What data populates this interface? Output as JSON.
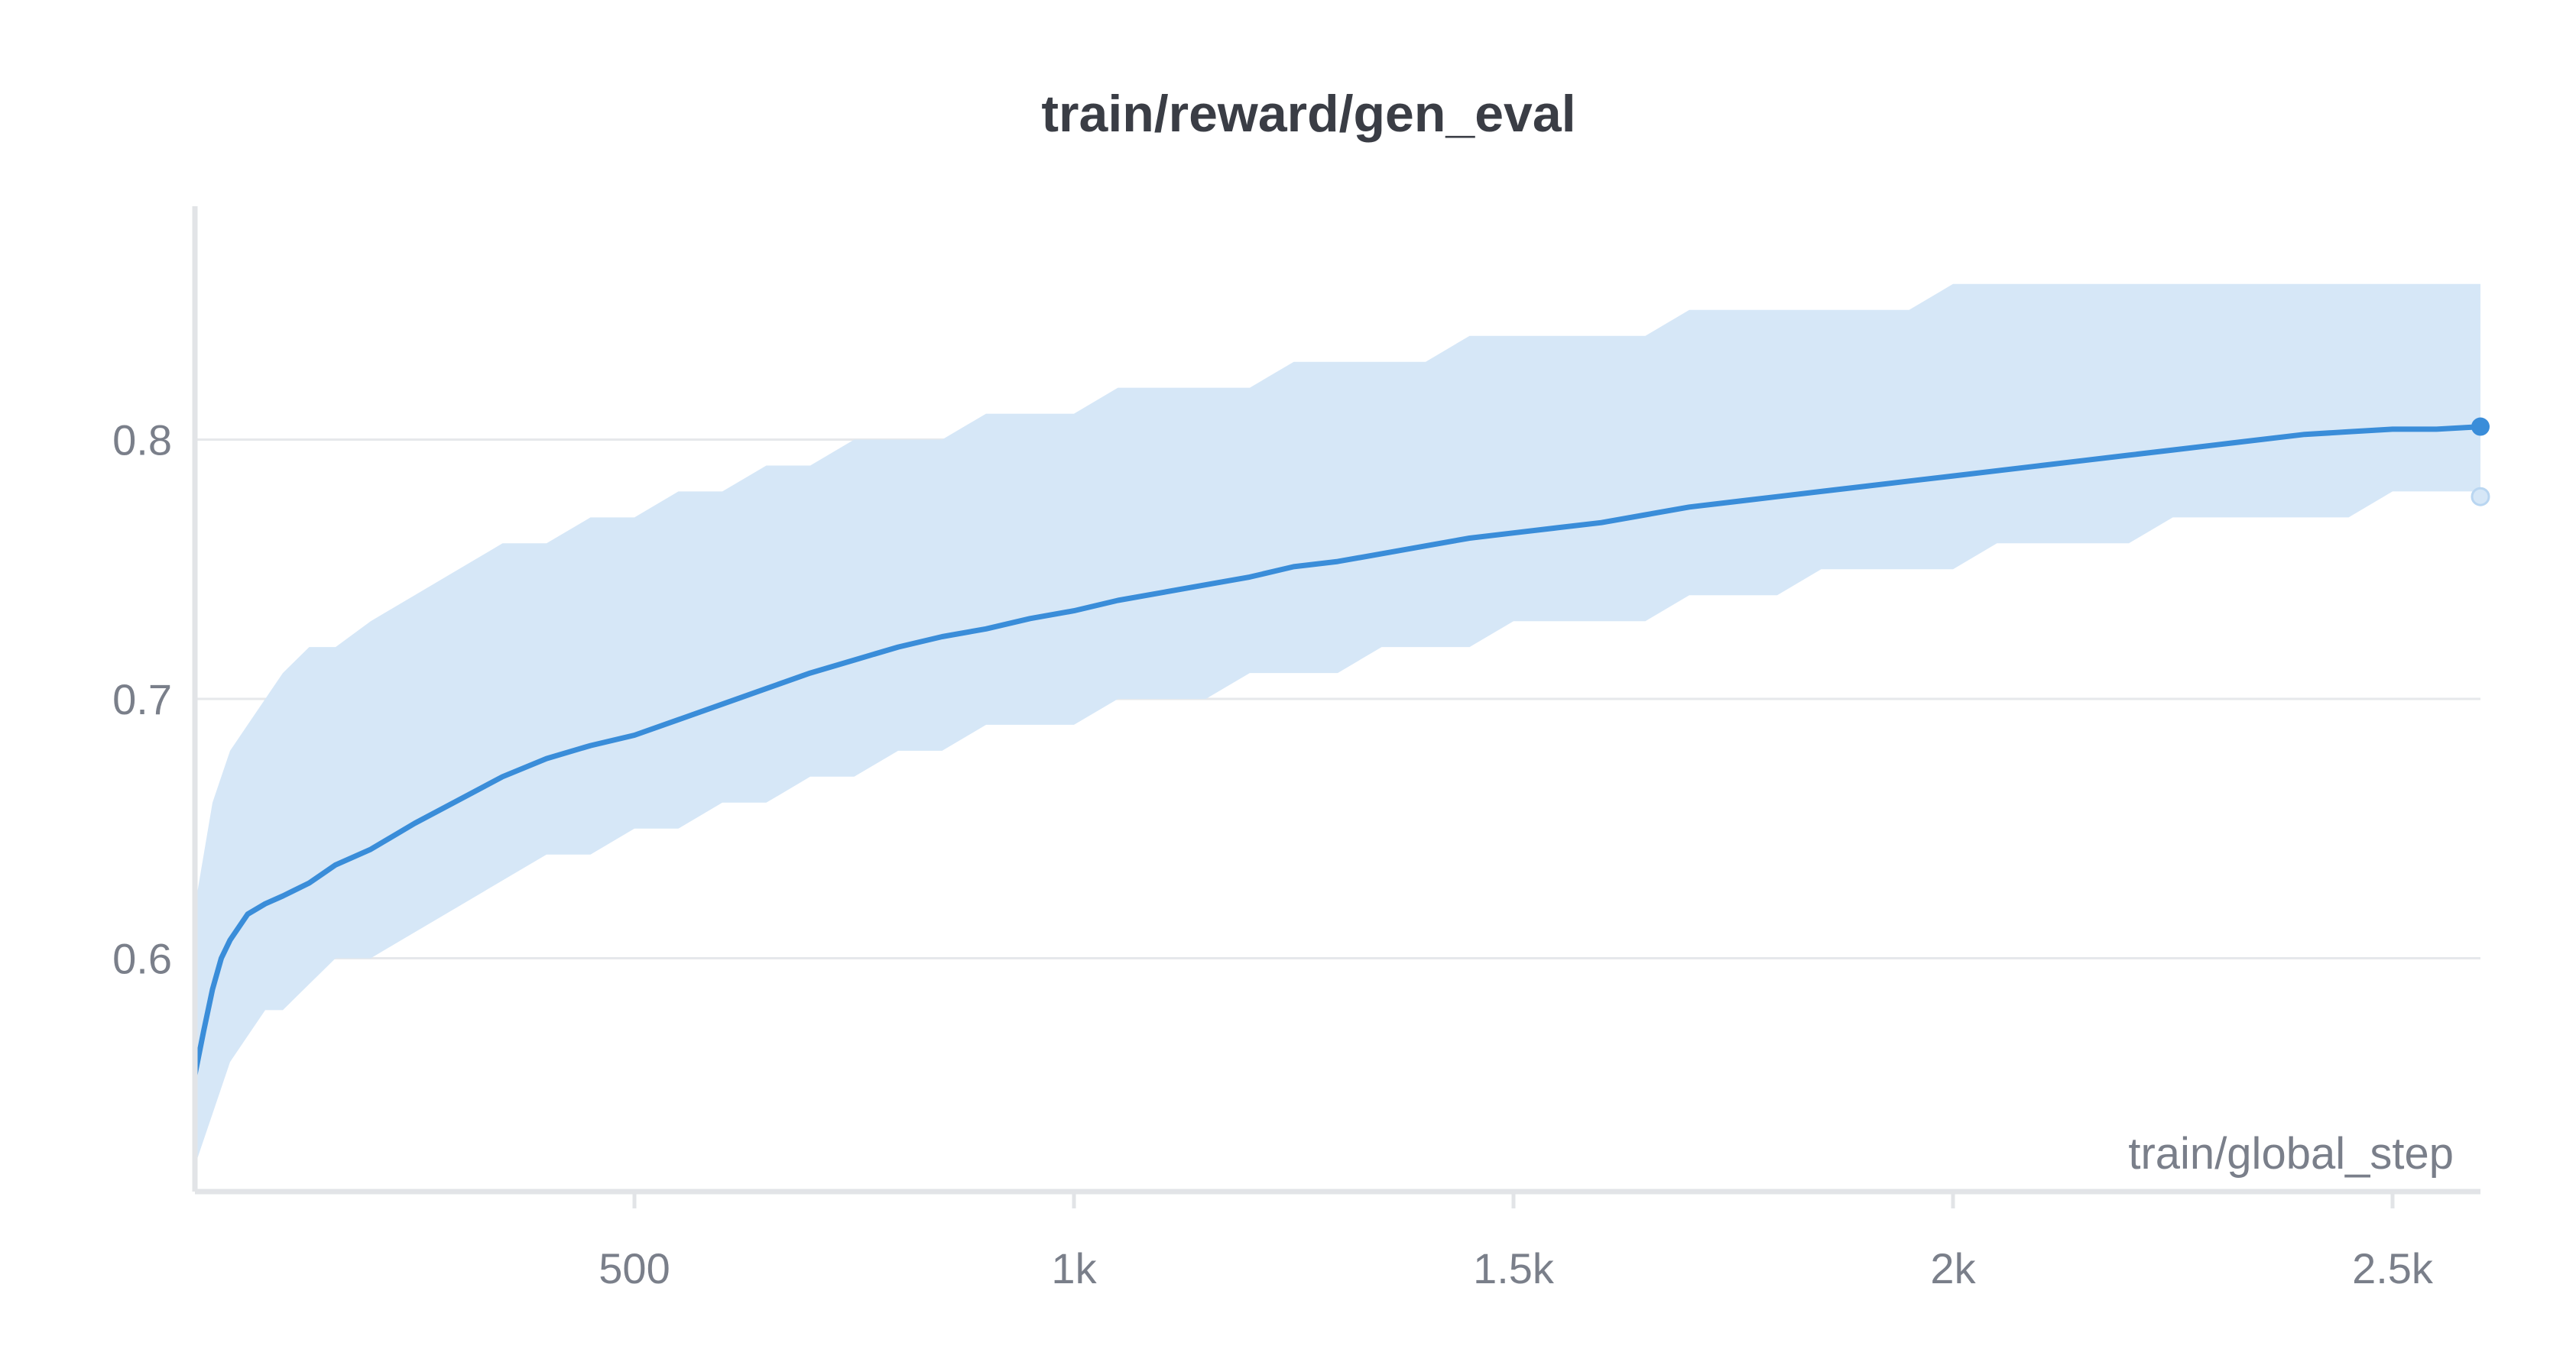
{
  "chart_data": {
    "type": "line",
    "title": "train/reward/gen_eval",
    "xlabel": "train/global_step",
    "ylabel": "",
    "xlim": [
      0,
      2600
    ],
    "ylim": [
      0.51,
      0.89
    ],
    "x_ticks": [
      {
        "value": 500,
        "label": "500"
      },
      {
        "value": 1000,
        "label": "1k"
      },
      {
        "value": 1500,
        "label": "1.5k"
      },
      {
        "value": 2000,
        "label": "2k"
      },
      {
        "value": 2500,
        "label": "2.5k"
      }
    ],
    "y_ticks": [
      {
        "value": 0.6,
        "label": "0.6"
      },
      {
        "value": 0.7,
        "label": "0.7"
      },
      {
        "value": 0.8,
        "label": "0.8"
      }
    ],
    "grid": "horizontal",
    "colors": {
      "smoothed": "#3a8dd9",
      "raw": "#d6e7f7",
      "grid": "#e6e8eb",
      "axis": "#e2e4e7"
    },
    "series": [
      {
        "role": "smoothed",
        "x": [
          0,
          10,
          20,
          30,
          40,
          60,
          80,
          100,
          130,
          160,
          200,
          250,
          300,
          350,
          400,
          450,
          500,
          550,
          600,
          650,
          700,
          750,
          800,
          850,
          900,
          950,
          1000,
          1050,
          1100,
          1150,
          1200,
          1250,
          1300,
          1350,
          1400,
          1450,
          1500,
          1550,
          1600,
          1650,
          1700,
          1750,
          1800,
          1850,
          1900,
          1950,
          2000,
          2050,
          2100,
          2150,
          2200,
          2250,
          2300,
          2350,
          2400,
          2450,
          2500,
          2550,
          2600
        ],
        "y": [
          0.555,
          0.572,
          0.588,
          0.6,
          0.607,
          0.617,
          0.621,
          0.624,
          0.629,
          0.636,
          0.642,
          0.652,
          0.661,
          0.67,
          0.677,
          0.682,
          0.686,
          0.692,
          0.698,
          0.704,
          0.71,
          0.715,
          0.72,
          0.724,
          0.727,
          0.731,
          0.734,
          0.738,
          0.741,
          0.744,
          0.747,
          0.751,
          0.753,
          0.756,
          0.759,
          0.762,
          0.764,
          0.766,
          0.768,
          0.771,
          0.774,
          0.776,
          0.778,
          0.78,
          0.782,
          0.784,
          0.786,
          0.788,
          0.79,
          0.792,
          0.794,
          0.796,
          0.798,
          0.8,
          0.802,
          0.803,
          0.804,
          0.804,
          0.805
        ]
      },
      {
        "role": "raw",
        "x": [
          0,
          10,
          20,
          30,
          40,
          60,
          80,
          100,
          130,
          160,
          200,
          250,
          300,
          350,
          400,
          450,
          500,
          550,
          600,
          650,
          700,
          750,
          800,
          850,
          900,
          950,
          1000,
          1050,
          1100,
          1150,
          1200,
          1250,
          1300,
          1350,
          1400,
          1450,
          1500,
          1550,
          1600,
          1650,
          1700,
          1750,
          1800,
          1850,
          1900,
          1950,
          2000,
          2050,
          2100,
          2150,
          2200,
          2250,
          2300,
          2350,
          2400,
          2450,
          2500,
          2550,
          2600
        ],
        "y_low": [
          0.52,
          0.53,
          0.54,
          0.55,
          0.56,
          0.57,
          0.58,
          0.58,
          0.59,
          0.6,
          0.6,
          0.61,
          0.62,
          0.63,
          0.64,
          0.64,
          0.65,
          0.65,
          0.66,
          0.66,
          0.67,
          0.67,
          0.68,
          0.68,
          0.69,
          0.69,
          0.69,
          0.7,
          0.7,
          0.7,
          0.71,
          0.71,
          0.71,
          0.72,
          0.72,
          0.72,
          0.73,
          0.73,
          0.73,
          0.73,
          0.74,
          0.74,
          0.74,
          0.75,
          0.75,
          0.75,
          0.75,
          0.76,
          0.76,
          0.76,
          0.76,
          0.77,
          0.77,
          0.77,
          0.77,
          0.77,
          0.78,
          0.78,
          0.78
        ],
        "y_high": [
          0.62,
          0.64,
          0.66,
          0.67,
          0.68,
          0.69,
          0.7,
          0.71,
          0.72,
          0.72,
          0.73,
          0.74,
          0.75,
          0.76,
          0.76,
          0.77,
          0.77,
          0.78,
          0.78,
          0.79,
          0.79,
          0.8,
          0.8,
          0.8,
          0.81,
          0.81,
          0.81,
          0.82,
          0.82,
          0.82,
          0.82,
          0.83,
          0.83,
          0.83,
          0.83,
          0.84,
          0.84,
          0.84,
          0.84,
          0.84,
          0.85,
          0.85,
          0.85,
          0.85,
          0.85,
          0.85,
          0.86,
          0.86,
          0.86,
          0.86,
          0.86,
          0.86,
          0.86,
          0.86,
          0.86,
          0.86,
          0.86,
          0.86,
          0.86
        ],
        "last_value": 0.778
      }
    ]
  }
}
